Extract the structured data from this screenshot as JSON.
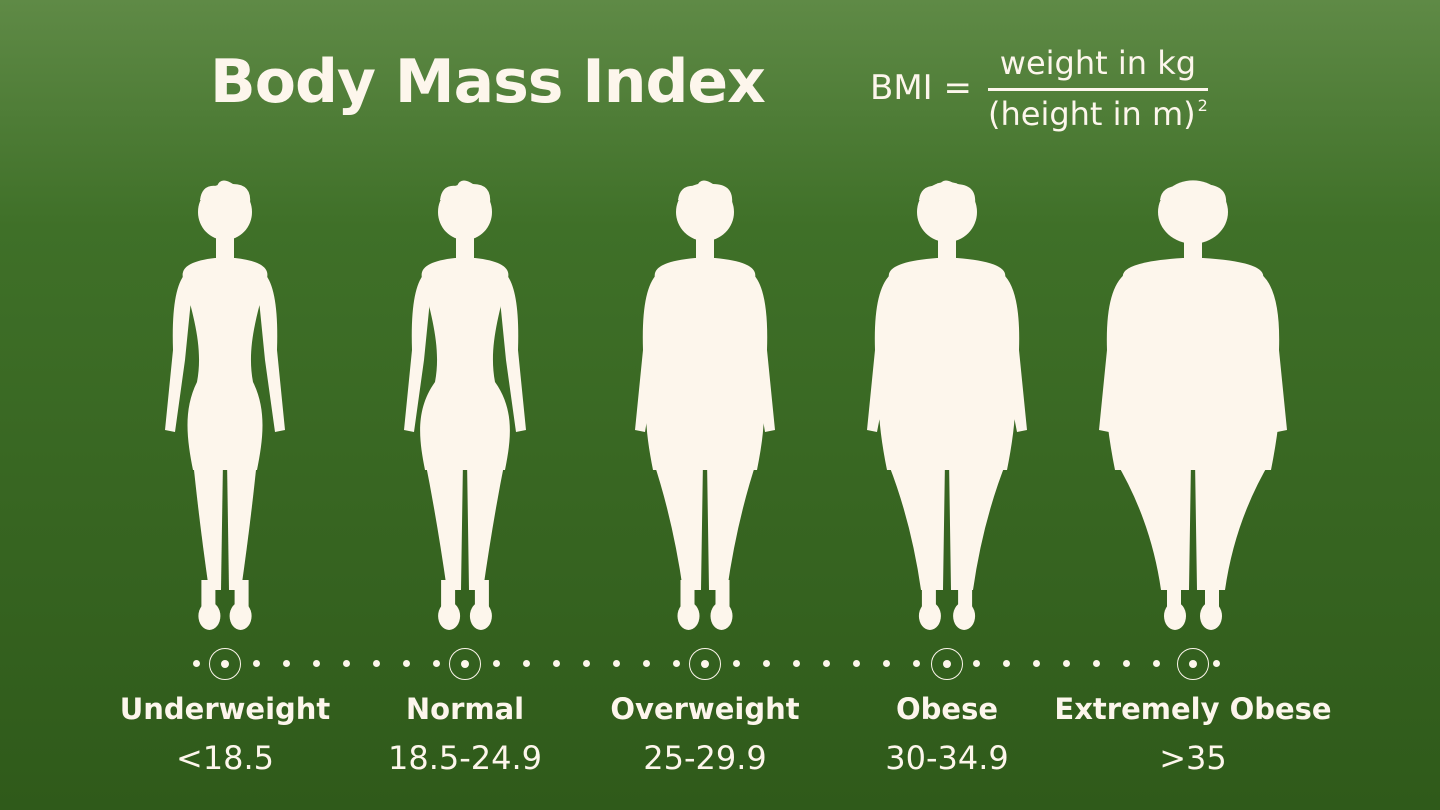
{
  "title": "Body Mass Index",
  "formula": {
    "lhs": "BMI =",
    "numerator": "weight in kg",
    "denominator": "(height in m)",
    "exponent": "2"
  },
  "categories": [
    {
      "label": "Underweight",
      "range": "<18.5"
    },
    {
      "label": "Normal",
      "range": "18.5-24.9"
    },
    {
      "label": "Overweight",
      "range": "25-29.9"
    },
    {
      "label": "Obese",
      "range": "30-34.9"
    },
    {
      "label": "Extremely Obese",
      "range": ">35"
    }
  ],
  "colors": {
    "background_top": "#5f8a46",
    "background_bottom": "#2f5a1a",
    "foreground": "#fdf6ec"
  }
}
